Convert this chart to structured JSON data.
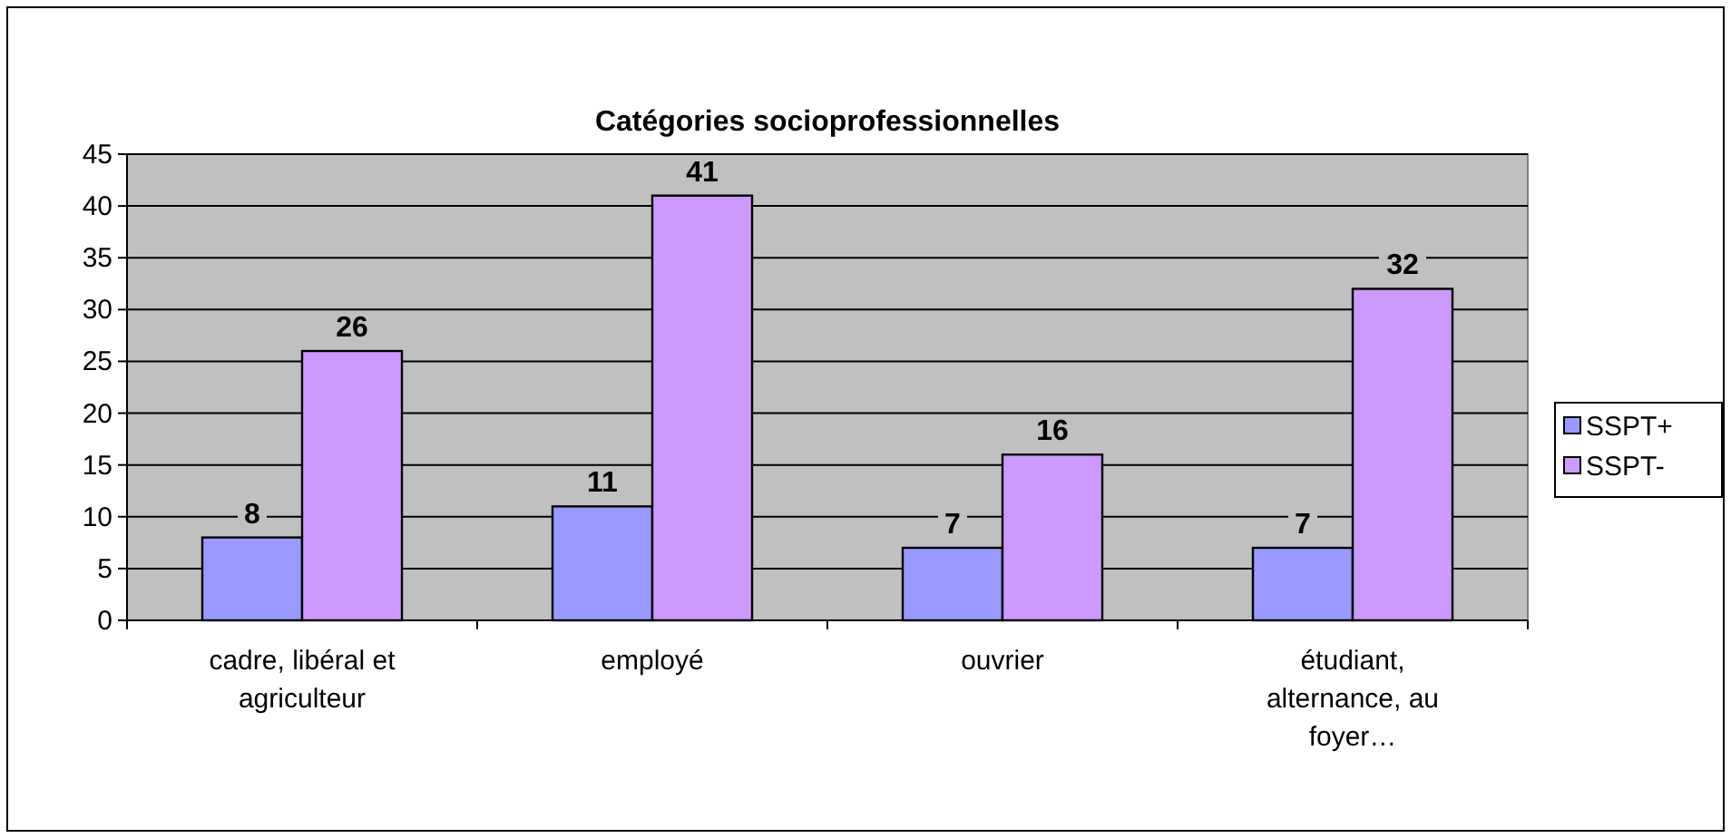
{
  "chart_data": {
    "type": "bar",
    "title": "Catégories socioprofessionnelles",
    "categories": [
      "cadre, libéral et agriculteur",
      "employé",
      "ouvrier",
      "étudiant, alternance, au foyer…"
    ],
    "series": [
      {
        "name": "SSPT+",
        "color": "#9999ff",
        "values": [
          8,
          11,
          7,
          7
        ]
      },
      {
        "name": "SSPT-",
        "color": "#cc99ff",
        "values": [
          26,
          41,
          16,
          32
        ]
      }
    ],
    "ylim": [
      0,
      45
    ],
    "yticks": [
      0,
      5,
      10,
      15,
      20,
      25,
      30,
      35,
      40,
      45
    ],
    "grid": "y",
    "legend": "right",
    "data_labels": true
  }
}
